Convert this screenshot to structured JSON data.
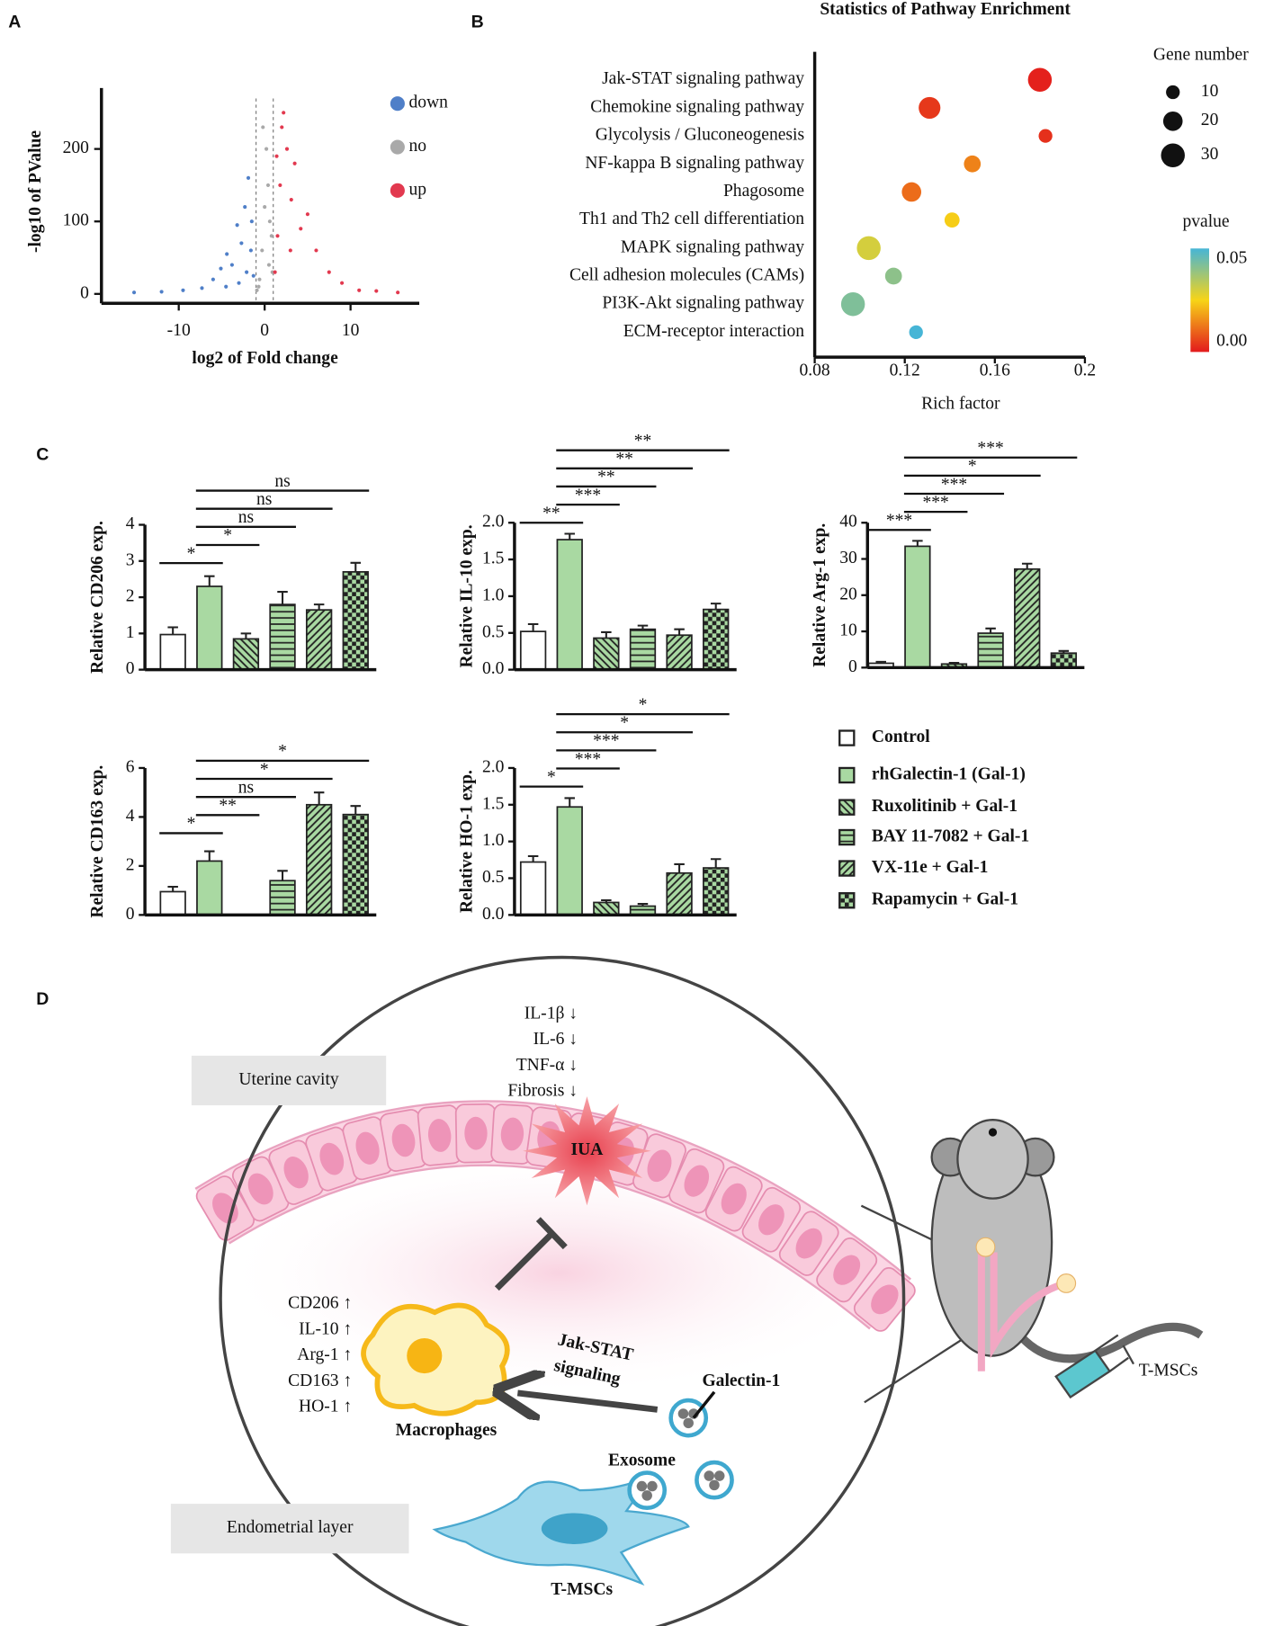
{
  "panel_labels": [
    "A",
    "B",
    "C",
    "D"
  ],
  "chart_data": [
    {
      "type": "scatter",
      "xlabel": "log2 of Fold change",
      "ylabel": "-log10 of PValue",
      "xlim": [
        -19,
        18
      ],
      "ylim": [
        -13,
        284
      ],
      "xticks": [
        -10,
        0,
        10
      ],
      "yticks": [
        0,
        100,
        200
      ],
      "vlines": [
        -1,
        1
      ],
      "series": [
        {
          "name": "down",
          "color": "#4f7fc8",
          "x": [
            -15.2,
            -12,
            -9.5,
            -7.3,
            -6,
            -5.1,
            -4.4,
            -3.8,
            -3.2,
            -2.7,
            -2.3,
            -1.9,
            -1.6,
            -1.3,
            -4.5,
            -3,
            -2.1,
            -1.5
          ],
          "values": [
            2,
            3,
            5,
            8,
            20,
            35,
            55,
            40,
            95,
            70,
            120,
            160,
            60,
            25,
            10,
            15,
            30,
            100
          ]
        },
        {
          "name": "no",
          "color": "#a9a9a9",
          "x": [
            -0.9,
            -0.6,
            -0.3,
            0,
            0.2,
            0.5,
            0.8,
            -0.7,
            0.4,
            0.9,
            -0.2,
            0.6
          ],
          "values": [
            5,
            20,
            60,
            120,
            200,
            40,
            80,
            10,
            150,
            30,
            230,
            100
          ]
        },
        {
          "name": "up",
          "color": "#e2394f",
          "x": [
            1.2,
            1.5,
            1.8,
            2.2,
            2.6,
            3.1,
            3.5,
            4.2,
            5,
            6,
            7.5,
            9,
            11,
            13,
            15.5,
            2,
            3,
            1.4
          ],
          "values": [
            30,
            80,
            150,
            250,
            200,
            130,
            180,
            90,
            110,
            60,
            30,
            15,
            5,
            4,
            2,
            230,
            60,
            190
          ]
        }
      ]
    },
    {
      "type": "bubble",
      "title": "Statistics of Pathway Enrichment",
      "xlabel": "Rich factor",
      "xlim": [
        0.08,
        0.2
      ],
      "xticks": [
        0.08,
        0.12,
        0.16,
        0.2
      ],
      "categories": [
        "Jak-STAT signaling pathway",
        "Chemokine signaling pathway",
        "Glycolysis / Gluconeogenesis",
        "NF-kappa B signaling pathway",
        "Phagosome",
        "Th1 and Th2 cell differentiation",
        "MAPK signaling pathway",
        "Cell adhesion molecules (CAMs)",
        "PI3K-Akt signaling pathway",
        "ECM-receptor interaction"
      ],
      "x": [
        0.18,
        0.131,
        0.1825,
        0.15,
        0.123,
        0.141,
        0.104,
        0.115,
        0.097,
        0.125
      ],
      "sizes": [
        30,
        25,
        10,
        15,
        20,
        12,
        30,
        15,
        30,
        10
      ],
      "pvalues": [
        0.001,
        0.004,
        0.003,
        0.014,
        0.011,
        0.024,
        0.03,
        0.04,
        0.042,
        0.05
      ],
      "size_legend": {
        "title": "Gene number",
        "values": [
          10,
          20,
          30
        ]
      },
      "color_legend": {
        "title": "pvalue",
        "clim": [
          0,
          0.05
        ],
        "colors": [
          "#e31a1c",
          "#f7d417",
          "#46b5d6"
        ],
        "ticks": [
          {
            "value": 0.05,
            "label": "0.05"
          },
          {
            "value": 0,
            "label": "0.00"
          }
        ]
      }
    },
    {
      "type": "bar",
      "ylabel": "Relative CD206 exp.",
      "ylim": [
        0,
        4
      ],
      "yticks": [
        0,
        1,
        2,
        3,
        4
      ],
      "values": [
        0.97,
        2.3,
        0.85,
        1.8,
        1.65,
        2.7
      ],
      "errors": [
        0.2,
        0.28,
        0.15,
        0.35,
        0.15,
        0.25
      ],
      "comparisons": [
        {
          "groups": [
            0,
            1
          ],
          "label": "*"
        },
        {
          "groups": [
            1,
            2
          ],
          "label": "*"
        },
        {
          "groups": [
            1,
            3
          ],
          "label": "ns"
        },
        {
          "groups": [
            1,
            4
          ],
          "label": "ns"
        },
        {
          "groups": [
            1,
            5
          ],
          "label": "ns"
        }
      ]
    },
    {
      "type": "bar",
      "ylabel": "Relative IL-10 exp.",
      "ylim": [
        0,
        2
      ],
      "yticks": [
        {
          "value": 0,
          "label": "0.0"
        },
        0.5,
        {
          "value": 1,
          "label": "1.0"
        },
        1.5,
        {
          "value": 2,
          "label": "2.0"
        }
      ],
      "values": [
        0.52,
        1.77,
        0.43,
        0.55,
        0.47,
        0.82
      ],
      "errors": [
        0.1,
        0.08,
        0.08,
        0.05,
        0.08,
        0.08
      ],
      "comparisons": [
        {
          "groups": [
            0,
            1
          ],
          "label": "**"
        },
        {
          "groups": [
            1,
            2
          ],
          "label": "***"
        },
        {
          "groups": [
            1,
            3
          ],
          "label": "**"
        },
        {
          "groups": [
            1,
            4
          ],
          "label": "**"
        },
        {
          "groups": [
            1,
            5
          ],
          "label": "**"
        }
      ]
    },
    {
      "type": "bar",
      "ylabel": "Relative Arg-1 exp.",
      "ylim": [
        0,
        40
      ],
      "yticks": [
        0,
        10,
        20,
        30,
        40
      ],
      "values": [
        1.2,
        33.5,
        1,
        9.5,
        27.2,
        4
      ],
      "errors": [
        0.4,
        1.5,
        0.3,
        1.3,
        1.5,
        0.6
      ],
      "comparisons": [
        {
          "groups": [
            0,
            1
          ],
          "label": "***"
        },
        {
          "groups": [
            1,
            2
          ],
          "label": "***"
        },
        {
          "groups": [
            1,
            3
          ],
          "label": "***"
        },
        {
          "groups": [
            1,
            4
          ],
          "label": "*"
        },
        {
          "groups": [
            1,
            5
          ],
          "label": "***"
        }
      ]
    },
    {
      "type": "bar",
      "ylabel": "Relative CD163 exp.",
      "ylim": [
        0,
        6
      ],
      "yticks": [
        0,
        2,
        4,
        6
      ],
      "values": [
        0.95,
        2.2,
        null,
        1.4,
        4.5,
        4.1
      ],
      "errors": [
        0.2,
        0.4,
        null,
        0.4,
        0.5,
        0.35
      ],
      "comparisons": [
        {
          "groups": [
            0,
            1
          ],
          "label": "*"
        },
        {
          "groups": [
            1,
            2
          ],
          "label": "**"
        },
        {
          "groups": [
            1,
            3
          ],
          "label": "ns"
        },
        {
          "groups": [
            1,
            4
          ],
          "label": "*"
        },
        {
          "groups": [
            1,
            5
          ],
          "label": "*"
        }
      ]
    },
    {
      "type": "bar",
      "ylabel": "Relative HO-1 exp.",
      "ylim": [
        0,
        2
      ],
      "yticks": [
        {
          "value": 0,
          "label": "0.0"
        },
        0.5,
        {
          "value": 1,
          "label": "1.0"
        },
        1.5,
        {
          "value": 2,
          "label": "2.0"
        }
      ],
      "values": [
        0.72,
        1.47,
        0.17,
        0.12,
        0.57,
        0.64
      ],
      "errors": [
        0.08,
        0.12,
        0.03,
        0.03,
        0.12,
        0.12
      ],
      "comparisons": [
        {
          "groups": [
            0,
            1
          ],
          "label": "*"
        },
        {
          "groups": [
            1,
            2
          ],
          "label": "***"
        },
        {
          "groups": [
            1,
            3
          ],
          "label": "***"
        },
        {
          "groups": [
            1,
            4
          ],
          "label": "*"
        },
        {
          "groups": [
            1,
            5
          ],
          "label": "*"
        }
      ]
    }
  ],
  "bar_legend": {
    "color": "#a9d9a2",
    "items": [
      {
        "name": "Control",
        "fill": "white"
      },
      {
        "name": "rhGalectin-1 (Gal-1)",
        "fill": "solid"
      },
      {
        "name": "Ruxolitinib + Gal-1",
        "fill": "back-diagonal"
      },
      {
        "name": "BAY 11-7082 + Gal-1",
        "fill": "horizontal"
      },
      {
        "name": "VX-11e + Gal-1",
        "fill": "diagonal"
      },
      {
        "name": "Rapamycin + Gal-1",
        "fill": "checker"
      }
    ]
  },
  "diagram": {
    "regions": [
      "Uterine cavity",
      "Endometrial layer"
    ],
    "inflammation": [
      "IL-1β ↓",
      "IL-6 ↓",
      "TNF-α ↓",
      "Fibrosis ↓"
    ],
    "lesion": "IUA",
    "markers": [
      "CD206 ↑",
      "IL-10 ↑",
      "Arg-1 ↑",
      "CD163 ↑",
      "HO-1 ↑"
    ],
    "cell": "Macrophages",
    "pathway": [
      "Jak-STAT",
      "signaling"
    ],
    "factor": "Galectin-1",
    "vesicle": "Exosome",
    "source": "T-MSCs",
    "injection": "T-MSCs"
  }
}
